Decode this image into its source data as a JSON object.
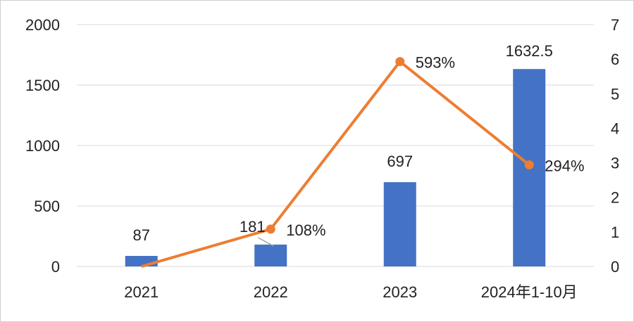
{
  "chart_data": {
    "type": "bar",
    "categories": [
      "2021",
      "2022",
      "2023",
      "2024年1-10月"
    ],
    "series": [
      {
        "type": "bar",
        "axis": "left",
        "color": "#4472C4",
        "values": [
          87,
          181,
          697,
          1632.5
        ],
        "labels": [
          "87",
          "181",
          "697",
          "1632.5"
        ]
      },
      {
        "type": "line",
        "axis": "right",
        "color": "#ED7D31",
        "values": [
          0,
          1.08,
          5.93,
          2.94
        ],
        "labels": [
          "",
          "108%",
          "593%",
          "294%"
        ]
      }
    ],
    "y_left": {
      "min": 0,
      "max": 2000,
      "ticks": [
        "0",
        "500",
        "1000",
        "1500",
        "2000"
      ]
    },
    "y_right": {
      "min": 0,
      "max": 7,
      "ticks": [
        "0",
        "1",
        "2",
        "3",
        "4",
        "5",
        "6",
        "7"
      ]
    },
    "grid": true,
    "legend": "none"
  }
}
